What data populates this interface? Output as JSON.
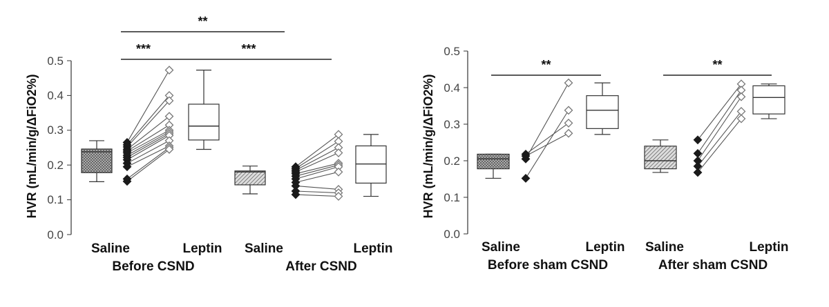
{
  "chart_data": [
    {
      "type": "box-and-paired-scatter",
      "ylabel": "HVR (mL/min/g/ΔFiO2%)",
      "ylim": [
        0,
        0.5
      ],
      "yticks": [
        "0.0",
        "0.1",
        "0.2",
        "0.3",
        "0.4",
        "0.5"
      ],
      "category_labels": [
        "Saline",
        "Leptin",
        "Saline",
        "Leptin"
      ],
      "group_labels": [
        "Before CSND",
        "After CSND"
      ],
      "boxes": [
        {
          "name": "Saline",
          "group": "Before CSND",
          "min": 0.152,
          "q1": 0.178,
          "median": 0.238,
          "q3": 0.246,
          "max": 0.27,
          "pattern": "crosshatch"
        },
        {
          "name": "Leptin",
          "group": "Before CSND",
          "min": 0.245,
          "q1": 0.272,
          "median": 0.312,
          "q3": 0.375,
          "max": 0.473,
          "pattern": "none"
        },
        {
          "name": "Saline",
          "group": "After CSND",
          "min": 0.117,
          "q1": 0.143,
          "median": 0.18,
          "q3": 0.183,
          "max": 0.197,
          "pattern": "diagonal"
        },
        {
          "name": "Leptin",
          "group": "After CSND",
          "min": 0.11,
          "q1": 0.148,
          "median": 0.203,
          "q3": 0.255,
          "max": 0.288,
          "pattern": "none"
        }
      ],
      "paired": [
        {
          "group": "Before CSND",
          "saline": [
            0.265,
            0.258,
            0.252,
            0.245,
            0.24,
            0.235,
            0.228,
            0.222,
            0.215,
            0.205,
            0.195,
            0.16,
            0.153
          ],
          "leptin": [
            0.473,
            0.4,
            0.385,
            0.34,
            0.315,
            0.3,
            0.295,
            0.29,
            0.285,
            0.27,
            0.255,
            0.25,
            0.245
          ]
        },
        {
          "group": "After CSND",
          "saline": [
            0.195,
            0.19,
            0.185,
            0.18,
            0.175,
            0.168,
            0.16,
            0.15,
            0.14,
            0.125,
            0.115
          ],
          "leptin": [
            0.288,
            0.268,
            0.25,
            0.235,
            0.205,
            0.2,
            0.195,
            0.18,
            0.13,
            0.12,
            0.11
          ]
        }
      ],
      "significance": [
        {
          "label": "**",
          "y": 0.555,
          "from": "Before CSND Saline",
          "to": "After CSND Saline"
        },
        {
          "label": "***",
          "y": 0.5,
          "from": "Before CSND Saline",
          "to": "Before CSND Leptin"
        },
        {
          "label": "***",
          "y": 0.5,
          "from": "Before CSND Leptin",
          "to": "After CSND Leptin"
        }
      ]
    },
    {
      "type": "box-and-paired-scatter",
      "ylabel": "HVR (mL/min/g/ΔFiO2%)",
      "ylim": [
        0,
        0.5
      ],
      "yticks": [
        "0.0",
        "0.1",
        "0.2",
        "0.3",
        "0.4",
        "0.5"
      ],
      "category_labels": [
        "Saline",
        "Leptin",
        "Saline",
        "Leptin"
      ],
      "group_labels": [
        "Before sham CSND",
        "After sham CSND"
      ],
      "boxes": [
        {
          "name": "Saline",
          "group": "Before sham CSND",
          "min": 0.152,
          "q1": 0.178,
          "median": 0.205,
          "q3": 0.218,
          "max": 0.218,
          "pattern": "crosshatch"
        },
        {
          "name": "Leptin",
          "group": "Before sham CSND",
          "min": 0.272,
          "q1": 0.288,
          "median": 0.338,
          "q3": 0.378,
          "max": 0.413,
          "pattern": "none"
        },
        {
          "name": "Saline",
          "group": "After sham CSND",
          "min": 0.168,
          "q1": 0.178,
          "median": 0.2,
          "q3": 0.24,
          "max": 0.257,
          "pattern": "diagonal"
        },
        {
          "name": "Leptin",
          "group": "After sham CSND",
          "min": 0.315,
          "q1": 0.328,
          "median": 0.373,
          "q3": 0.405,
          "max": 0.41,
          "pattern": "none"
        }
      ],
      "paired": [
        {
          "group": "Before sham CSND",
          "saline": [
            0.218,
            0.213,
            0.205,
            0.152
          ],
          "leptin": [
            0.303,
            0.275,
            0.413,
            0.338
          ]
        },
        {
          "group": "After sham CSND",
          "saline": [
            0.257,
            0.22,
            0.2,
            0.185,
            0.168
          ],
          "leptin": [
            0.41,
            0.393,
            0.375,
            0.335,
            0.315
          ]
        }
      ],
      "significance": [
        {
          "label": "**",
          "y": 0.442,
          "from": "Before sham CSND Saline",
          "to": "Before sham CSND Leptin"
        },
        {
          "label": "**",
          "y": 0.442,
          "from": "After sham CSND Saline",
          "to": "After sham CSND Leptin"
        }
      ]
    }
  ]
}
